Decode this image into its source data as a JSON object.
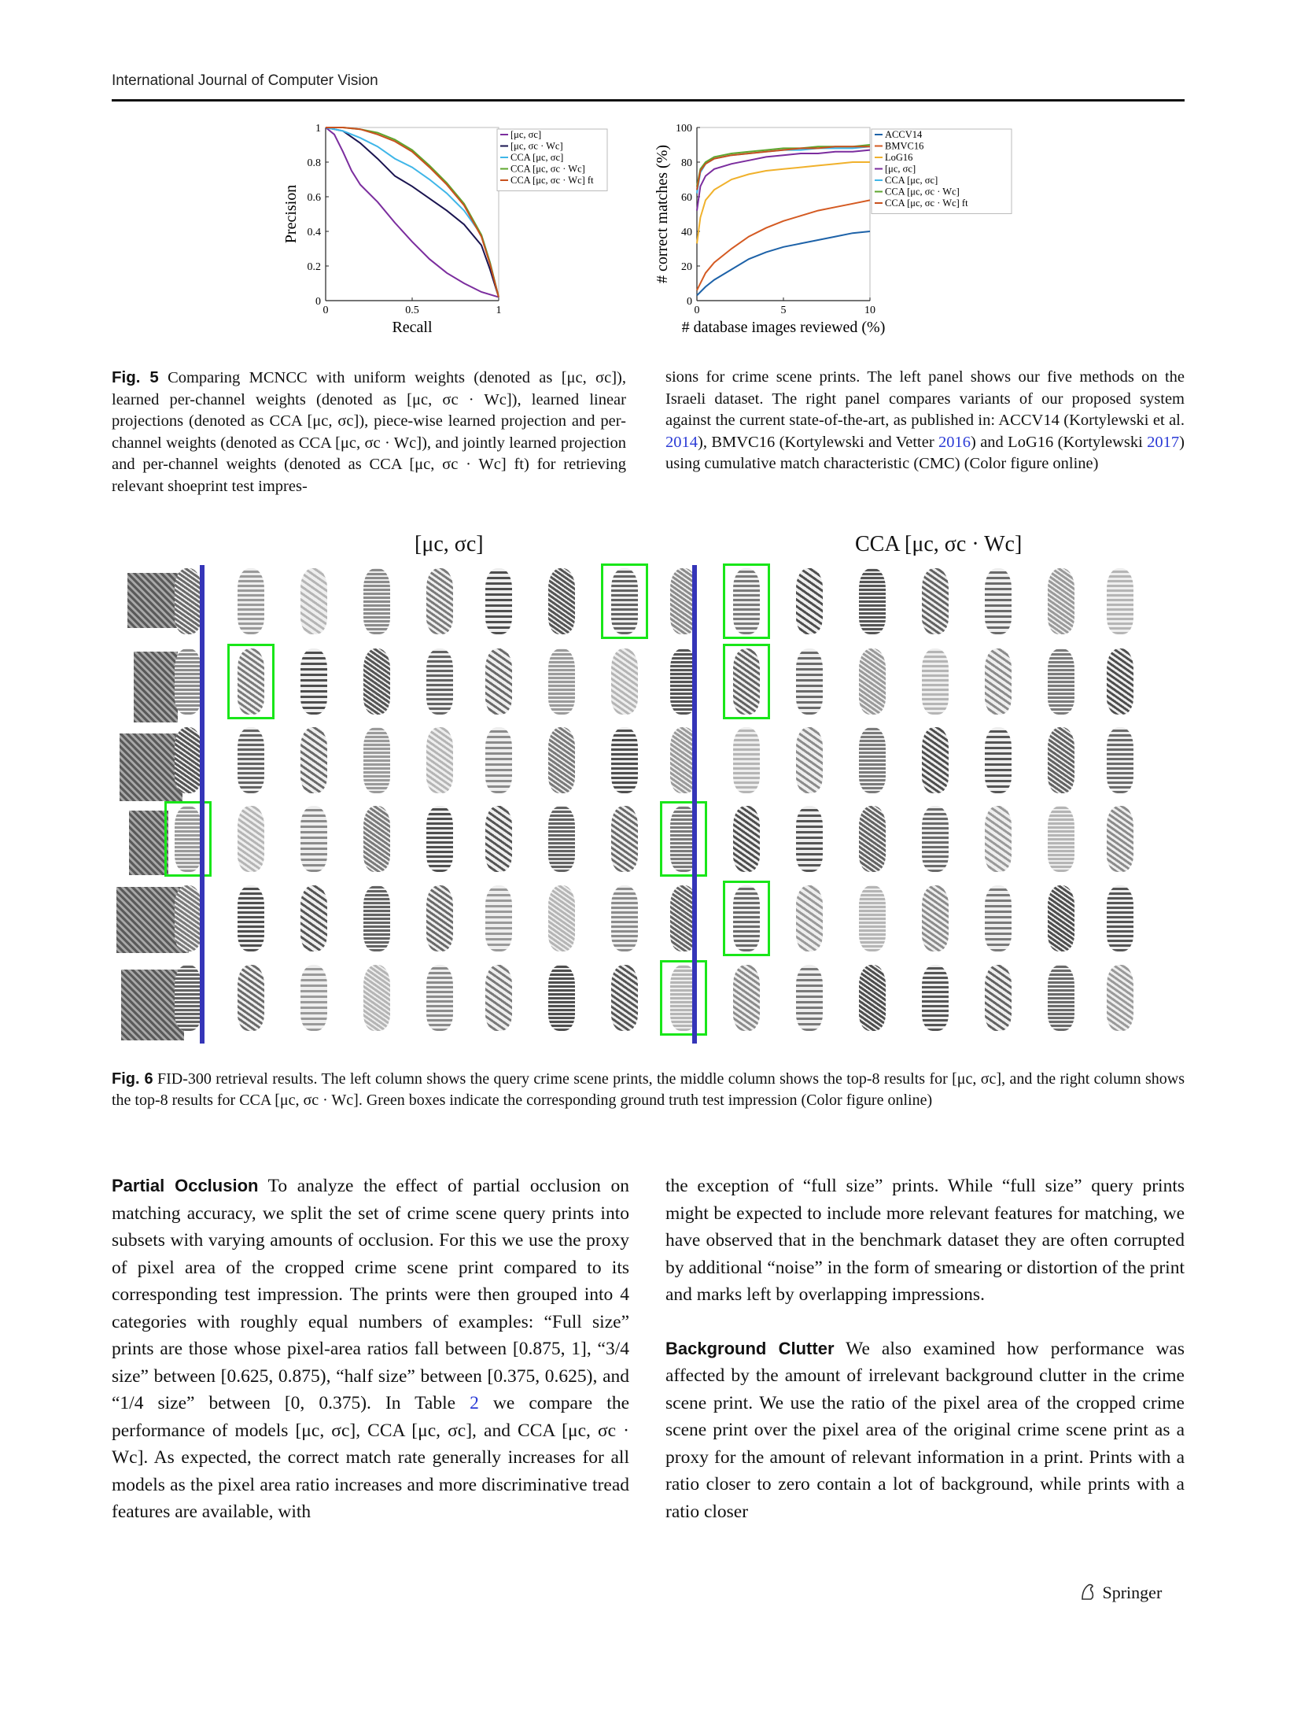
{
  "header": {
    "journal": "International Journal of Computer Vision"
  },
  "fig5": {
    "chart_data": [
      {
        "type": "line",
        "xlabel": "Recall",
        "ylabel": "Precision",
        "xlim": [
          0,
          1
        ],
        "ylim": [
          0,
          1
        ],
        "x_ticks": [
          "0",
          "0.5",
          "1"
        ],
        "y_ticks": [
          "0",
          "0.2",
          "0.4",
          "0.6",
          "0.8",
          "1"
        ],
        "legend_position": "top-right",
        "series": [
          {
            "name": "[μc, σc]",
            "color": "#7b2d9e",
            "x": [
              0,
              0.05,
              0.1,
              0.15,
              0.2,
              0.3,
              0.4,
              0.5,
              0.6,
              0.7,
              0.8,
              0.9,
              1.0
            ],
            "y": [
              1,
              0.96,
              0.86,
              0.75,
              0.67,
              0.57,
              0.45,
              0.34,
              0.24,
              0.16,
              0.1,
              0.05,
              0.02
            ]
          },
          {
            "name": "[μc, σc · Wc]",
            "color": "#1a1450",
            "x": [
              0,
              0.1,
              0.2,
              0.3,
              0.4,
              0.5,
              0.6,
              0.7,
              0.8,
              0.9,
              0.95,
              1.0
            ],
            "y": [
              1,
              0.98,
              0.91,
              0.82,
              0.72,
              0.66,
              0.59,
              0.52,
              0.44,
              0.32,
              0.18,
              0.02
            ]
          },
          {
            "name": "CCA [μc, σc]",
            "color": "#3fb6e8",
            "x": [
              0,
              0.1,
              0.2,
              0.3,
              0.4,
              0.5,
              0.6,
              0.7,
              0.8,
              0.9,
              0.95,
              1.0
            ],
            "y": [
              1,
              0.98,
              0.94,
              0.89,
              0.82,
              0.77,
              0.7,
              0.62,
              0.52,
              0.38,
              0.22,
              0.02
            ]
          },
          {
            "name": "CCA [μc, σc · Wc]",
            "color": "#5ea62e",
            "x": [
              0,
              0.1,
              0.2,
              0.3,
              0.4,
              0.5,
              0.6,
              0.7,
              0.8,
              0.9,
              0.95,
              1.0
            ],
            "y": [
              1,
              1,
              0.99,
              0.97,
              0.93,
              0.87,
              0.78,
              0.68,
              0.56,
              0.38,
              0.22,
              0.02
            ]
          },
          {
            "name": "CCA [μc, σc · Wc] ft",
            "color": "#c8511e",
            "x": [
              0,
              0.1,
              0.2,
              0.3,
              0.4,
              0.5,
              0.6,
              0.7,
              0.8,
              0.9,
              0.95,
              1.0
            ],
            "y": [
              1,
              1,
              0.99,
              0.96,
              0.92,
              0.86,
              0.77,
              0.67,
              0.55,
              0.37,
              0.21,
              0.02
            ]
          }
        ]
      },
      {
        "type": "line",
        "xlabel": "# database images reviewed (%)",
        "ylabel": "# correct matches (%)",
        "xlim": [
          0,
          10
        ],
        "ylim": [
          0,
          100
        ],
        "x_ticks": [
          "0",
          "5",
          "10"
        ],
        "y_ticks": [
          "0",
          "20",
          "40",
          "60",
          "80",
          "100"
        ],
        "legend_position": "top-right",
        "series": [
          {
            "name": "ACCV14",
            "color": "#1d62a8",
            "x": [
              0,
              0.5,
              1,
              2,
              3,
              4,
              5,
              6,
              7,
              8,
              9,
              10
            ],
            "y": [
              3,
              8,
              12,
              18,
              24,
              28,
              31,
              33,
              35,
              37,
              39,
              40
            ]
          },
          {
            "name": "BMVC16",
            "color": "#d45a22",
            "x": [
              0,
              0.5,
              1,
              2,
              3,
              4,
              5,
              6,
              7,
              8,
              9,
              10
            ],
            "y": [
              6,
              16,
              22,
              30,
              37,
              42,
              46,
              49,
              52,
              54,
              56,
              58
            ]
          },
          {
            "name": "LoG16",
            "color": "#f0b12c",
            "x": [
              0,
              0.2,
              0.5,
              1,
              2,
              3,
              4,
              5,
              6,
              7,
              8,
              9,
              10
            ],
            "y": [
              33,
              48,
              58,
              64,
              70,
              73,
              75,
              76,
              77,
              78,
              79,
              80,
              80
            ]
          },
          {
            "name": "[μc, σc]",
            "color": "#7b2d9e",
            "x": [
              0,
              0.2,
              0.5,
              1,
              2,
              3,
              4,
              5,
              6,
              7,
              8,
              9,
              10
            ],
            "y": [
              52,
              66,
              72,
              76,
              79,
              81,
              83,
              84,
              85,
              85,
              86,
              86,
              87
            ]
          },
          {
            "name": "CCA [μc, σc]",
            "color": "#3fb6e8",
            "x": [
              0,
              0.2,
              0.5,
              1,
              2,
              3,
              4,
              5,
              6,
              7,
              8,
              9,
              10
            ],
            "y": [
              62,
              74,
              79,
              82,
              84,
              85,
              86,
              87,
              87,
              88,
              88,
              88,
              89
            ]
          },
          {
            "name": "CCA [μc, σc · Wc]",
            "color": "#5ea62e",
            "x": [
              0,
              0.2,
              0.5,
              1,
              2,
              3,
              4,
              5,
              6,
              7,
              8,
              9,
              10
            ],
            "y": [
              66,
              76,
              80,
              83,
              85,
              86,
              87,
              88,
              88,
              89,
              89,
              89,
              90
            ]
          },
          {
            "name": "CCA [μc, σc · Wc] ft",
            "color": "#c8511e",
            "x": [
              0,
              0.2,
              0.5,
              1,
              2,
              3,
              4,
              5,
              6,
              7,
              8,
              9,
              10
            ],
            "y": [
              64,
              75,
              79,
              82,
              84,
              85,
              86,
              87,
              88,
              88,
              89,
              89,
              89
            ]
          }
        ]
      }
    ],
    "caption_label": "Fig. 5",
    "caption_left": "Comparing MCNCC with uniform weights (denoted as [μc, σc]), learned per-channel weights (denoted as [μc, σc · Wc]), learned linear projections (denoted as CCA [μc, σc]), piece-wise learned projection and per-channel weights (denoted as CCA [μc, σc · Wc]), and jointly learned projection and per-channel weights (denoted as CCA [μc, σc · Wc] ft) for retrieving relevant shoeprint test impres-",
    "caption_right_1": "sions for crime scene prints. The left panel shows our five methods on the Israeli dataset. The right panel compares variants of our proposed system against the current state-of-the-art, as published in: ACCV14 (Kortylewski et al. ",
    "cite_1": "2014",
    "caption_right_2": "), BMVC16 (Kortylewski and Vetter ",
    "cite_2": "2016",
    "caption_right_3": ") and LoG16 (Kortylewski ",
    "cite_3": "2017",
    "caption_right_4": ") using cumulative match characteristic (CMC) (Color figure online)"
  },
  "fig6": {
    "left_header": "[μc, σc]",
    "right_header": "CCA [μc, σc · Wc]",
    "rows": 6,
    "results_per_group": 8,
    "ground_truth_positions": [
      {
        "row": 0,
        "left": 7,
        "right": 1
      },
      {
        "row": 1,
        "left": 1,
        "right": 1
      },
      {
        "row": 3,
        "left": 0,
        "right": 0
      },
      {
        "row": 4,
        "right": 1
      },
      {
        "row": 5,
        "right": 0
      }
    ],
    "colors": {
      "divider": "#3535b8",
      "ground_truth_box": "#19e619"
    },
    "caption_label": "Fig. 6",
    "caption": "FID-300 retrieval results. The left column shows the query crime scene prints, the middle column shows the top-8 results for [μc, σc], and the right column shows the top-8 results for CCA [μc, σc · Wc]. Green boxes indicate the corresponding ground truth test impression (Color figure online)"
  },
  "body": {
    "left_heading": "Partial Occlusion",
    "left_text_1": "To analyze the effect of partial occlusion on matching accuracy, we split the set of crime scene query prints into subsets with varying amounts of occlusion. For this we use the proxy of pixel area of the cropped crime scene print compared to its corresponding test impression. The prints were then grouped into 4 categories with roughly equal numbers of examples: “Full size” prints are those whose pixel-area ratios fall between [0.875, 1], “3/4 size” between [0.625, 0.875), “half size” between [0.375, 0.625), and “1/4 size” between [0, 0.375). In Table ",
    "table_ref": "2",
    "left_text_2": " we compare the performance of models [μc, σc], CCA [μc, σc], and CCA [μc, σc · Wc]. As expected, the correct match rate generally increases for all models as the pixel area ratio increases and more discriminative tread features are available, with",
    "right_text_1": "the exception of “full size” prints. While “full size” query prints might be expected to include more relevant features for matching, we have observed that in the benchmark dataset they are often corrupted by additional “noise” in the form of smearing or distortion of the print and marks left by overlapping impressions.",
    "right_heading": "Background Clutter",
    "right_text_2": "We also examined how performance was affected by the amount of irrelevant background clutter in the crime scene print. We use the ratio of the pixel area of the cropped crime scene print over the pixel area of the original crime scene print as a proxy for the amount of relevant information in a print. Prints with a ratio closer to zero contain a lot of background, while prints with a ratio closer"
  },
  "footer": {
    "publisher": "Springer"
  }
}
